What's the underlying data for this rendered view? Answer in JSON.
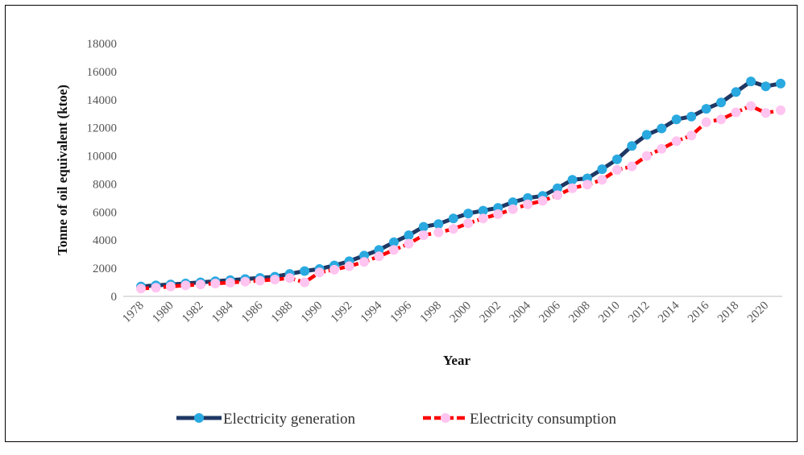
{
  "chart_data": {
    "type": "line",
    "title": "",
    "xlabel": "Year",
    "ylabel": "Tonne of oil equivalent (ktoe)",
    "ylim": [
      0,
      18000
    ],
    "yticks": [
      0,
      2000,
      4000,
      6000,
      8000,
      10000,
      12000,
      14000,
      16000,
      18000
    ],
    "x": [
      1978,
      1979,
      1980,
      1981,
      1982,
      1983,
      1984,
      1985,
      1986,
      1987,
      1988,
      1989,
      1990,
      1991,
      1992,
      1993,
      1994,
      1995,
      1996,
      1997,
      1998,
      1999,
      2000,
      2001,
      2002,
      2003,
      2004,
      2005,
      2006,
      2007,
      2008,
      2009,
      2010,
      2011,
      2012,
      2013,
      2014,
      2015,
      2016,
      2017,
      2018,
      2019,
      2020,
      2021
    ],
    "xtick_labels": [
      "1978",
      "1980",
      "1982",
      "1984",
      "1986",
      "1988",
      "1990",
      "1992",
      "1994",
      "1996",
      "1998",
      "2000",
      "2002",
      "2004",
      "2006",
      "2008",
      "2010",
      "2012",
      "2014",
      "2016",
      "2018",
      "2020"
    ],
    "grid": false,
    "legend_position": "bottom",
    "series": [
      {
        "name": "Electricity generation",
        "line_color": "#1f3864",
        "marker_color": "#29a9e0",
        "values": [
          700,
          780,
          850,
          920,
          1000,
          1080,
          1150,
          1230,
          1310,
          1400,
          1600,
          1800,
          1950,
          2200,
          2500,
          2900,
          3300,
          3850,
          4350,
          4950,
          5150,
          5550,
          5900,
          6100,
          6300,
          6700,
          7000,
          7150,
          7700,
          8300,
          8400,
          9050,
          9750,
          10700,
          11500,
          11950,
          12600,
          12800,
          13350,
          13800,
          14550,
          15300,
          14950,
          15150
        ]
      },
      {
        "name": "Electricity consumption",
        "line_color": "#ff0000",
        "marker_color": "#ffc4f0",
        "values": [
          550,
          620,
          700,
          780,
          850,
          920,
          980,
          1050,
          1120,
          1200,
          1300,
          1000,
          1700,
          1900,
          2150,
          2450,
          2850,
          3300,
          3750,
          4350,
          4550,
          4800,
          5200,
          5550,
          5850,
          6200,
          6550,
          6800,
          7200,
          7700,
          7950,
          8300,
          9000,
          9250,
          10000,
          10500,
          11050,
          11450,
          12400,
          12600,
          13100,
          13550,
          13050,
          13250
        ]
      }
    ]
  }
}
